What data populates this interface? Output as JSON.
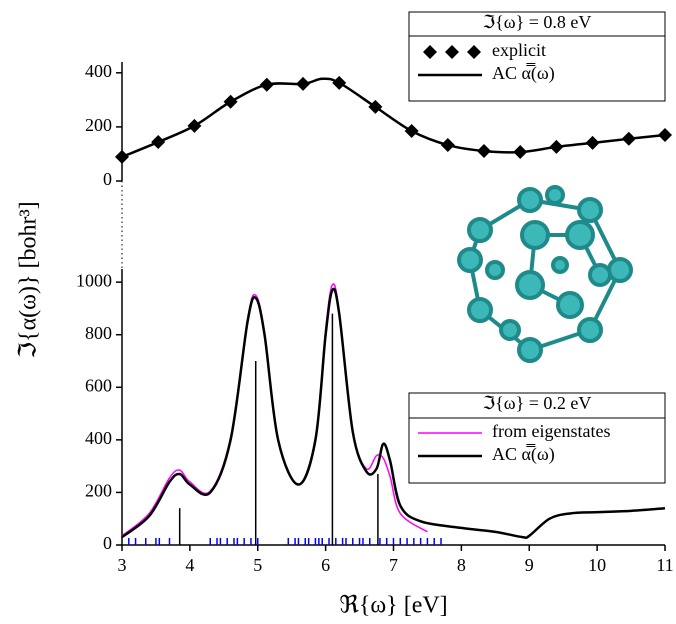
{
  "chart_data": [
    {
      "type": "line",
      "legend_title": "ℑ{ω} = 0.8 eV",
      "xlim": [
        3,
        11
      ],
      "ylim": [
        0,
        440
      ],
      "yticks": [
        0,
        200,
        400
      ],
      "series": [
        {
          "name": "explicit",
          "color": "#000000",
          "marker": "diamond",
          "x": [
            3.0,
            3.533,
            4.067,
            4.6,
            5.133,
            5.667,
            6.2,
            6.733,
            7.267,
            7.8,
            8.333,
            8.867,
            9.4,
            9.933,
            10.467,
            11.0
          ],
          "values": [
            89,
            144,
            204,
            293,
            356,
            359,
            363,
            274,
            185,
            133,
            111,
            107,
            126,
            141,
            156,
            170
          ]
        },
        {
          "name": "AC α̿(ω)",
          "color": "#000000",
          "marker": "none",
          "x": [
            3.0,
            3.533,
            4.067,
            4.6,
            5.133,
            5.667,
            5.95,
            6.2,
            6.733,
            7.267,
            7.8,
            8.333,
            8.867,
            9.4,
            9.933,
            10.467,
            11.0
          ],
          "values": [
            89,
            144,
            204,
            293,
            356,
            359,
            378,
            363,
            274,
            185,
            133,
            111,
            107,
            126,
            141,
            156,
            170
          ]
        }
      ]
    },
    {
      "type": "line",
      "legend_title": "ℑ{ω} = 0.2 eV",
      "xlabel": "ℜ{ω} [eV]",
      "ylabel": "ℑ{α(ω)} [bohr³]",
      "xlim": [
        3,
        11
      ],
      "xticks": [
        3,
        4,
        5,
        6,
        7,
        8,
        9,
        10,
        11
      ],
      "ylim": [
        0,
        1050
      ],
      "yticks": [
        0,
        200,
        400,
        600,
        800,
        1000
      ],
      "series": [
        {
          "name": "from eigenstates",
          "color": "#ff00ff",
          "x": [
            3.0,
            3.4,
            3.7,
            3.85,
            4.0,
            4.3,
            4.6,
            4.85,
            4.97,
            5.1,
            5.3,
            5.6,
            5.85,
            6.0,
            6.1,
            6.2,
            6.4,
            6.6,
            6.75,
            6.85,
            6.95,
            7.1,
            7.5
          ],
          "values": [
            35,
            120,
            255,
            285,
            240,
            205,
            410,
            860,
            950,
            810,
            400,
            230,
            410,
            820,
            990,
            890,
            430,
            290,
            340,
            330,
            260,
            120,
            50
          ]
        },
        {
          "name": "AC α̿(ω)",
          "color": "#000000",
          "x": [
            3.0,
            3.4,
            3.7,
            3.85,
            4.0,
            4.3,
            4.6,
            4.85,
            4.97,
            5.1,
            5.3,
            5.6,
            5.85,
            6.0,
            6.1,
            6.2,
            6.4,
            6.6,
            6.75,
            6.85,
            6.95,
            7.1,
            7.4,
            8.0,
            8.5,
            8.9,
            9.0,
            9.3,
            9.6,
            10.0,
            10.5,
            11.0
          ],
          "values": [
            30,
            110,
            240,
            270,
            230,
            200,
            400,
            850,
            940,
            800,
            400,
            230,
            400,
            800,
            970,
            880,
            430,
            280,
            290,
            385,
            320,
            150,
            90,
            65,
            50,
            30,
            35,
            100,
            120,
            125,
            130,
            140
          ]
        }
      ],
      "sticks": {
        "color": "#000000",
        "x": [
          3.85,
          4.97,
          6.1,
          6.77
        ],
        "values": [
          140,
          700,
          880,
          270
        ]
      },
      "rug": {
        "color": "#0000ff",
        "x": [
          3.1,
          3.2,
          3.35,
          3.5,
          3.55,
          3.7,
          4.3,
          4.4,
          4.45,
          4.55,
          4.65,
          4.7,
          4.8,
          4.9,
          5.0,
          5.45,
          5.55,
          5.6,
          5.7,
          5.75,
          5.85,
          5.9,
          5.95,
          6.05,
          6.15,
          6.25,
          6.3,
          6.4,
          6.5,
          6.55,
          6.65,
          6.8,
          6.9,
          7.0,
          7.1,
          7.2,
          7.3,
          7.4,
          7.5,
          7.6,
          7.7
        ]
      }
    }
  ]
}
